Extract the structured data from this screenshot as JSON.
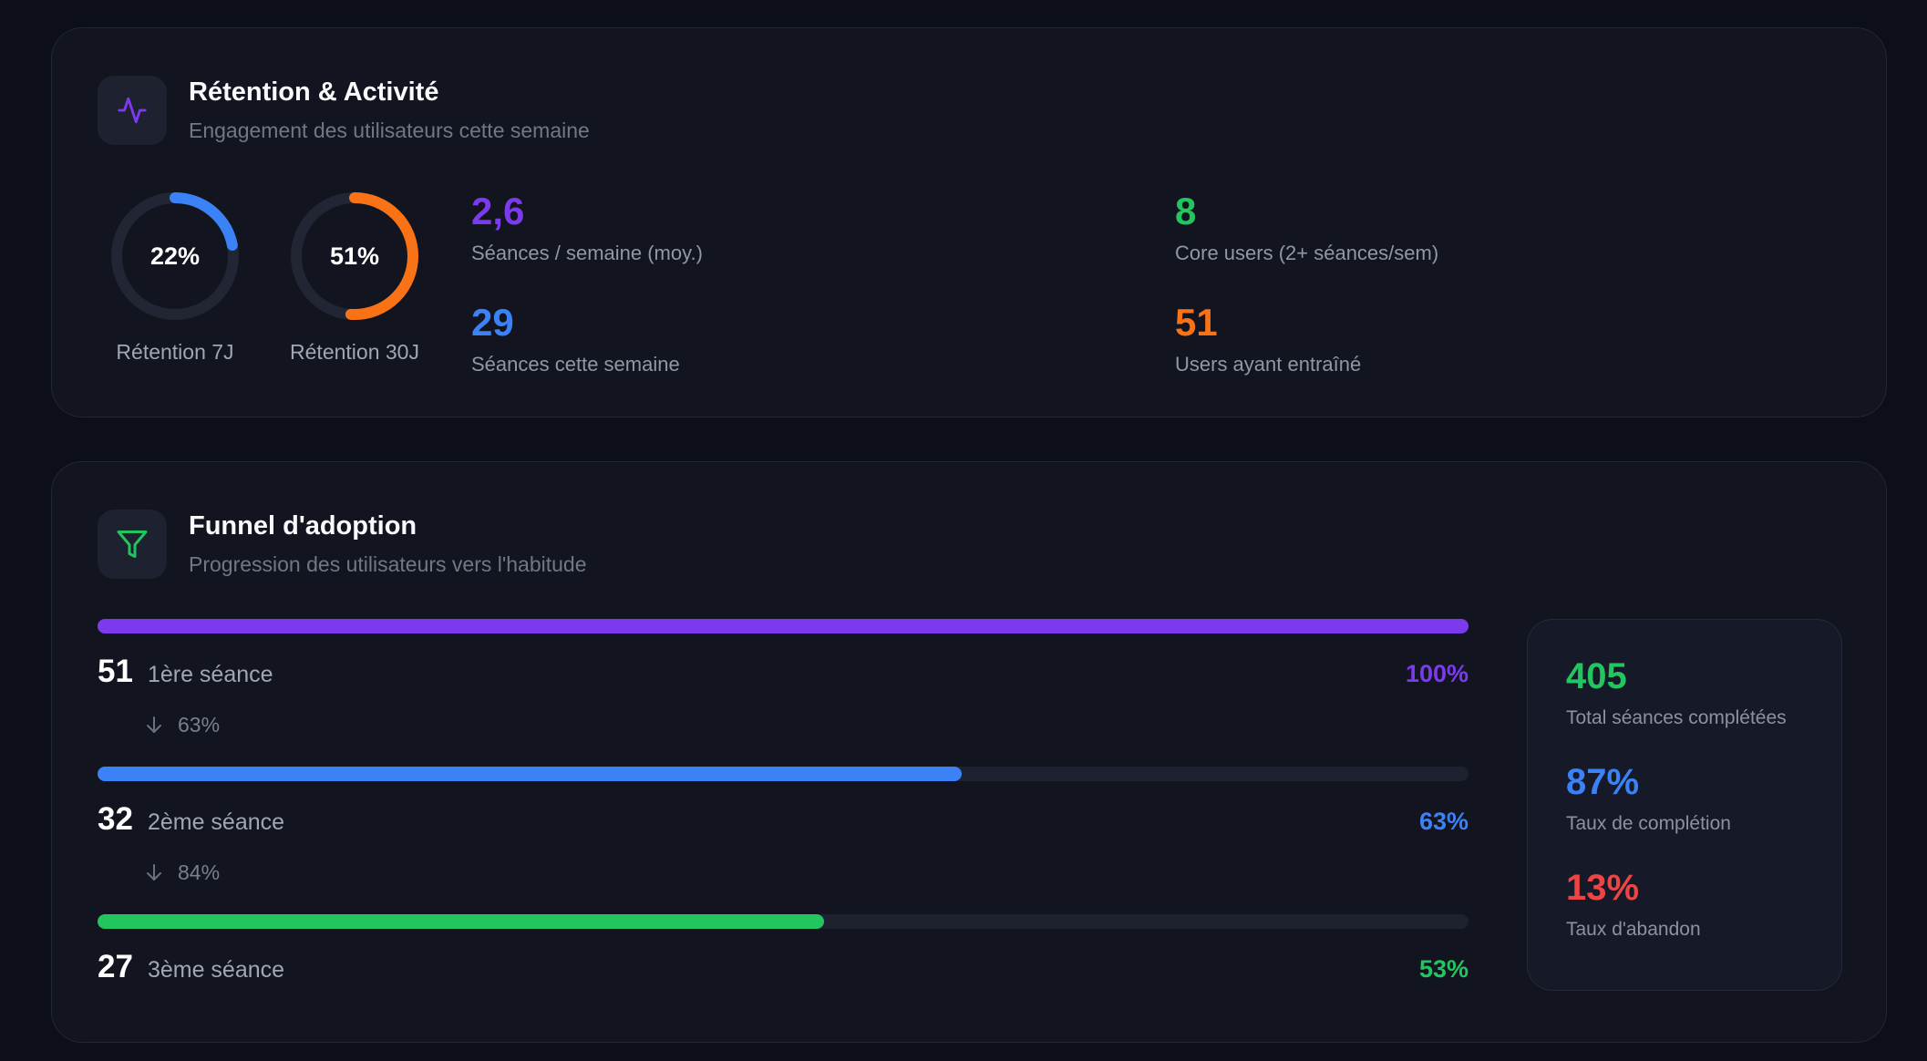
{
  "retention_card": {
    "title": "Rétention & Activité",
    "subtitle": "Engagement des utilisateurs cette semaine",
    "icon": "activity-pulse-icon",
    "rings": [
      {
        "value": "22%",
        "fraction": 0.22,
        "label": "Rétention 7J",
        "color": "#3b82f6"
      },
      {
        "value": "51%",
        "fraction": 0.51,
        "label": "Rétention 30J",
        "color": "#f97316"
      }
    ],
    "stats": [
      {
        "value": "2,6",
        "label": "Séances / semaine (moy.)",
        "color": "#7c3aed"
      },
      {
        "value": "29",
        "label": "Séances cette semaine",
        "color": "#3b82f6"
      },
      {
        "value": "8",
        "label": "Core users (2+ séances/sem)",
        "color": "#22c55e"
      },
      {
        "value": "51",
        "label": "Users ayant entraîné",
        "color": "#f97316"
      }
    ]
  },
  "funnel_card": {
    "title": "Funnel d'adoption",
    "subtitle": "Progression des utilisateurs vers l'habitude",
    "icon": "funnel-filter-icon",
    "steps": [
      {
        "count": "51",
        "label": "1ère séance",
        "percent": "100%",
        "fraction": 1.0,
        "color": "#7c3aed"
      },
      {
        "count": "32",
        "label": "2ème séance",
        "percent": "63%",
        "fraction": 0.63,
        "color": "#3b82f6"
      },
      {
        "count": "27",
        "label": "3ème séance",
        "percent": "53%",
        "fraction": 0.53,
        "color": "#22c55e"
      }
    ],
    "conversions": [
      "63%",
      "84%"
    ],
    "side_stats": [
      {
        "value": "405",
        "label": "Total séances complétées",
        "color": "#22c55e"
      },
      {
        "value": "87%",
        "label": "Taux de complétion",
        "color": "#3b82f6"
      },
      {
        "value": "13%",
        "label": "Taux d'abandon",
        "color": "#ef4444"
      }
    ]
  }
}
